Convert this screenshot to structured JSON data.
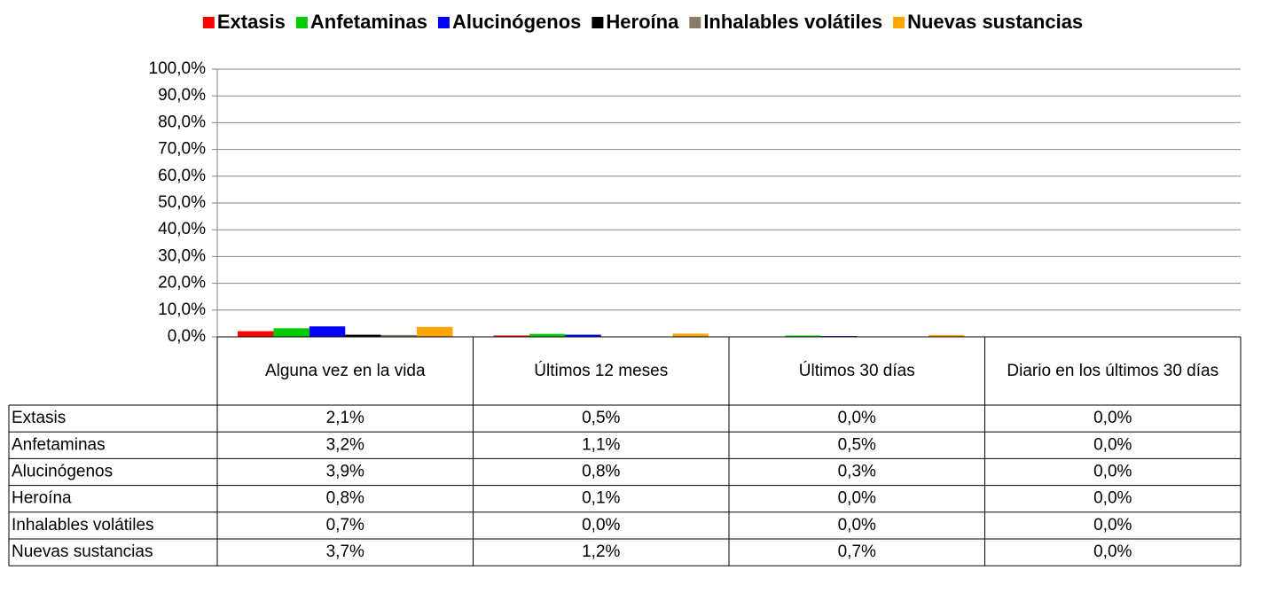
{
  "chart_data": {
    "type": "bar",
    "categories": [
      "Alguna vez en la vida",
      "Últimos 12 meses",
      "Últimos 30 días",
      "Diario en los últimos 30 días"
    ],
    "series": [
      {
        "name": "Extasis",
        "color": "#ff0000",
        "values": [
          2.1,
          0.5,
          0.0,
          0.0
        ],
        "value_labels": [
          "2,1%",
          "0,5%",
          "0,0%",
          "0,0%"
        ]
      },
      {
        "name": "Anfetaminas",
        "color": "#00cc00",
        "values": [
          3.2,
          1.1,
          0.5,
          0.0
        ],
        "value_labels": [
          "3,2%",
          "1,1%",
          "0,5%",
          "0,0%"
        ]
      },
      {
        "name": "Alucinógenos",
        "color": "#0000ff",
        "values": [
          3.9,
          0.8,
          0.3,
          0.0
        ],
        "value_labels": [
          "3,9%",
          "0,8%",
          "0,3%",
          "0,0%"
        ]
      },
      {
        "name": "Heroína",
        "color": "#000000",
        "values": [
          0.8,
          0.1,
          0.0,
          0.0
        ],
        "value_labels": [
          "0,8%",
          "0,1%",
          "0,0%",
          "0,0%"
        ]
      },
      {
        "name": "Inhalables volátiles",
        "color": "#8c7b6b",
        "values": [
          0.7,
          0.0,
          0.0,
          0.0
        ],
        "value_labels": [
          "0,7%",
          "0,0%",
          "0,0%",
          "0,0%"
        ]
      },
      {
        "name": "Nuevas sustancias",
        "color": "#ffa500",
        "values": [
          3.7,
          1.2,
          0.7,
          0.0
        ],
        "value_labels": [
          "3,7%",
          "1,2%",
          "0,7%",
          "0,0%"
        ]
      }
    ],
    "ylim": [
      0,
      100
    ],
    "yticks": [
      {
        "value": 0,
        "label": "0,0%"
      },
      {
        "value": 10,
        "label": "10,0%"
      },
      {
        "value": 20,
        "label": "20,0%"
      },
      {
        "value": 30,
        "label": "30,0%"
      },
      {
        "value": 40,
        "label": "40,0%"
      },
      {
        "value": 50,
        "label": "50,0%"
      },
      {
        "value": 60,
        "label": "60,0%"
      },
      {
        "value": 70,
        "label": "70,0%"
      },
      {
        "value": 80,
        "label": "80,0%"
      },
      {
        "value": 90,
        "label": "90,0%"
      },
      {
        "value": 100,
        "label": "100,0%"
      }
    ],
    "grid": true,
    "legend": "top"
  }
}
